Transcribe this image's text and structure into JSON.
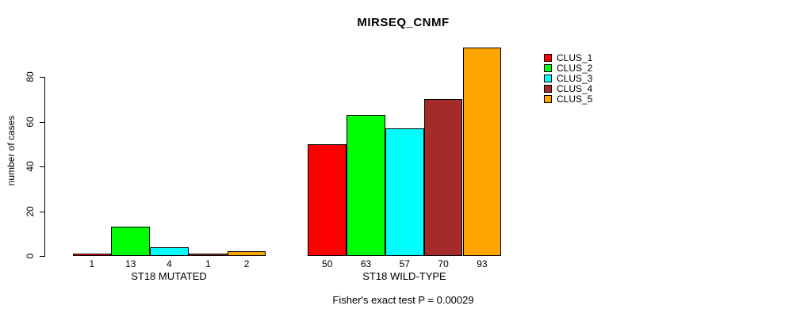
{
  "chart_data": {
    "type": "bar",
    "title": "MIRSEQ_CNMF",
    "xlabel": "",
    "ylabel": "number of cases",
    "categories": [
      "ST18 MUTATED",
      "ST18 WILD-TYPE"
    ],
    "series": [
      {
        "name": "CLUS_1",
        "color": "#FF0000",
        "values": [
          1,
          50
        ]
      },
      {
        "name": "CLUS_2",
        "color": "#00FF00",
        "values": [
          13,
          63
        ]
      },
      {
        "name": "CLUS_3",
        "color": "#00FFFF",
        "values": [
          4,
          57
        ]
      },
      {
        "name": "CLUS_4",
        "color": "#A52A2A",
        "values": [
          1,
          70
        ]
      },
      {
        "name": "CLUS_5",
        "color": "#FFA500",
        "values": [
          2,
          93
        ]
      }
    ],
    "bar_value_labels": [
      [
        "1",
        "13",
        "4",
        "1",
        "2"
      ],
      [
        "50",
        "63",
        "57",
        "70",
        "93"
      ]
    ],
    "y_ticks": [
      0,
      20,
      40,
      60,
      80
    ],
    "ylim": [
      0,
      93
    ],
    "grid": false,
    "legend_position": "right-inside",
    "annotation": "Fisher's exact test P = 0.00029",
    "axis_color": "#000000",
    "background_color": "#FFFFFF"
  }
}
